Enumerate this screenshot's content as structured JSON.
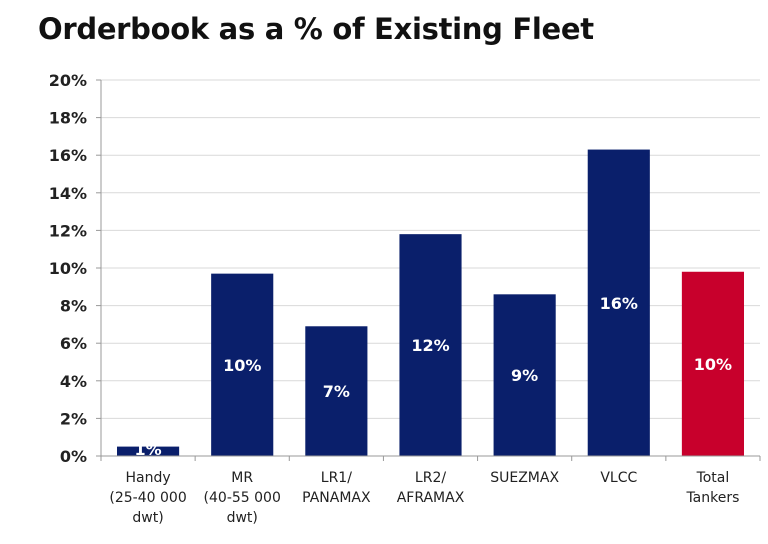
{
  "chart_data": {
    "type": "bar",
    "title": "Orderbook as a % of Existing Fleet",
    "xlabel": "",
    "ylabel": "",
    "ylim": [
      0,
      20
    ],
    "yticks": [
      "0%",
      "2%",
      "4%",
      "6%",
      "8%",
      "10%",
      "12%",
      "14%",
      "16%",
      "18%",
      "20%"
    ],
    "grid": true,
    "legend": "none",
    "categories": [
      [
        "Handy",
        "(25-40 000",
        "dwt)"
      ],
      [
        "MR",
        "(40-55 000",
        "dwt)"
      ],
      [
        "LR1/",
        "PANAMAX"
      ],
      [
        "LR2/",
        "AFRAMAX"
      ],
      [
        "SUEZMAX"
      ],
      [
        "VLCC"
      ],
      [
        "Total",
        "Tankers"
      ]
    ],
    "values": [
      0.5,
      9.7,
      6.9,
      11.8,
      8.6,
      16.3,
      9.8
    ],
    "data_labels": [
      "1%",
      "10%",
      "7%",
      "12%",
      "9%",
      "16%",
      "10%"
    ],
    "colors": [
      "#0a1f6b",
      "#0a1f6b",
      "#0a1f6b",
      "#0a1f6b",
      "#0a1f6b",
      "#0a1f6b",
      "#c8002c"
    ]
  }
}
